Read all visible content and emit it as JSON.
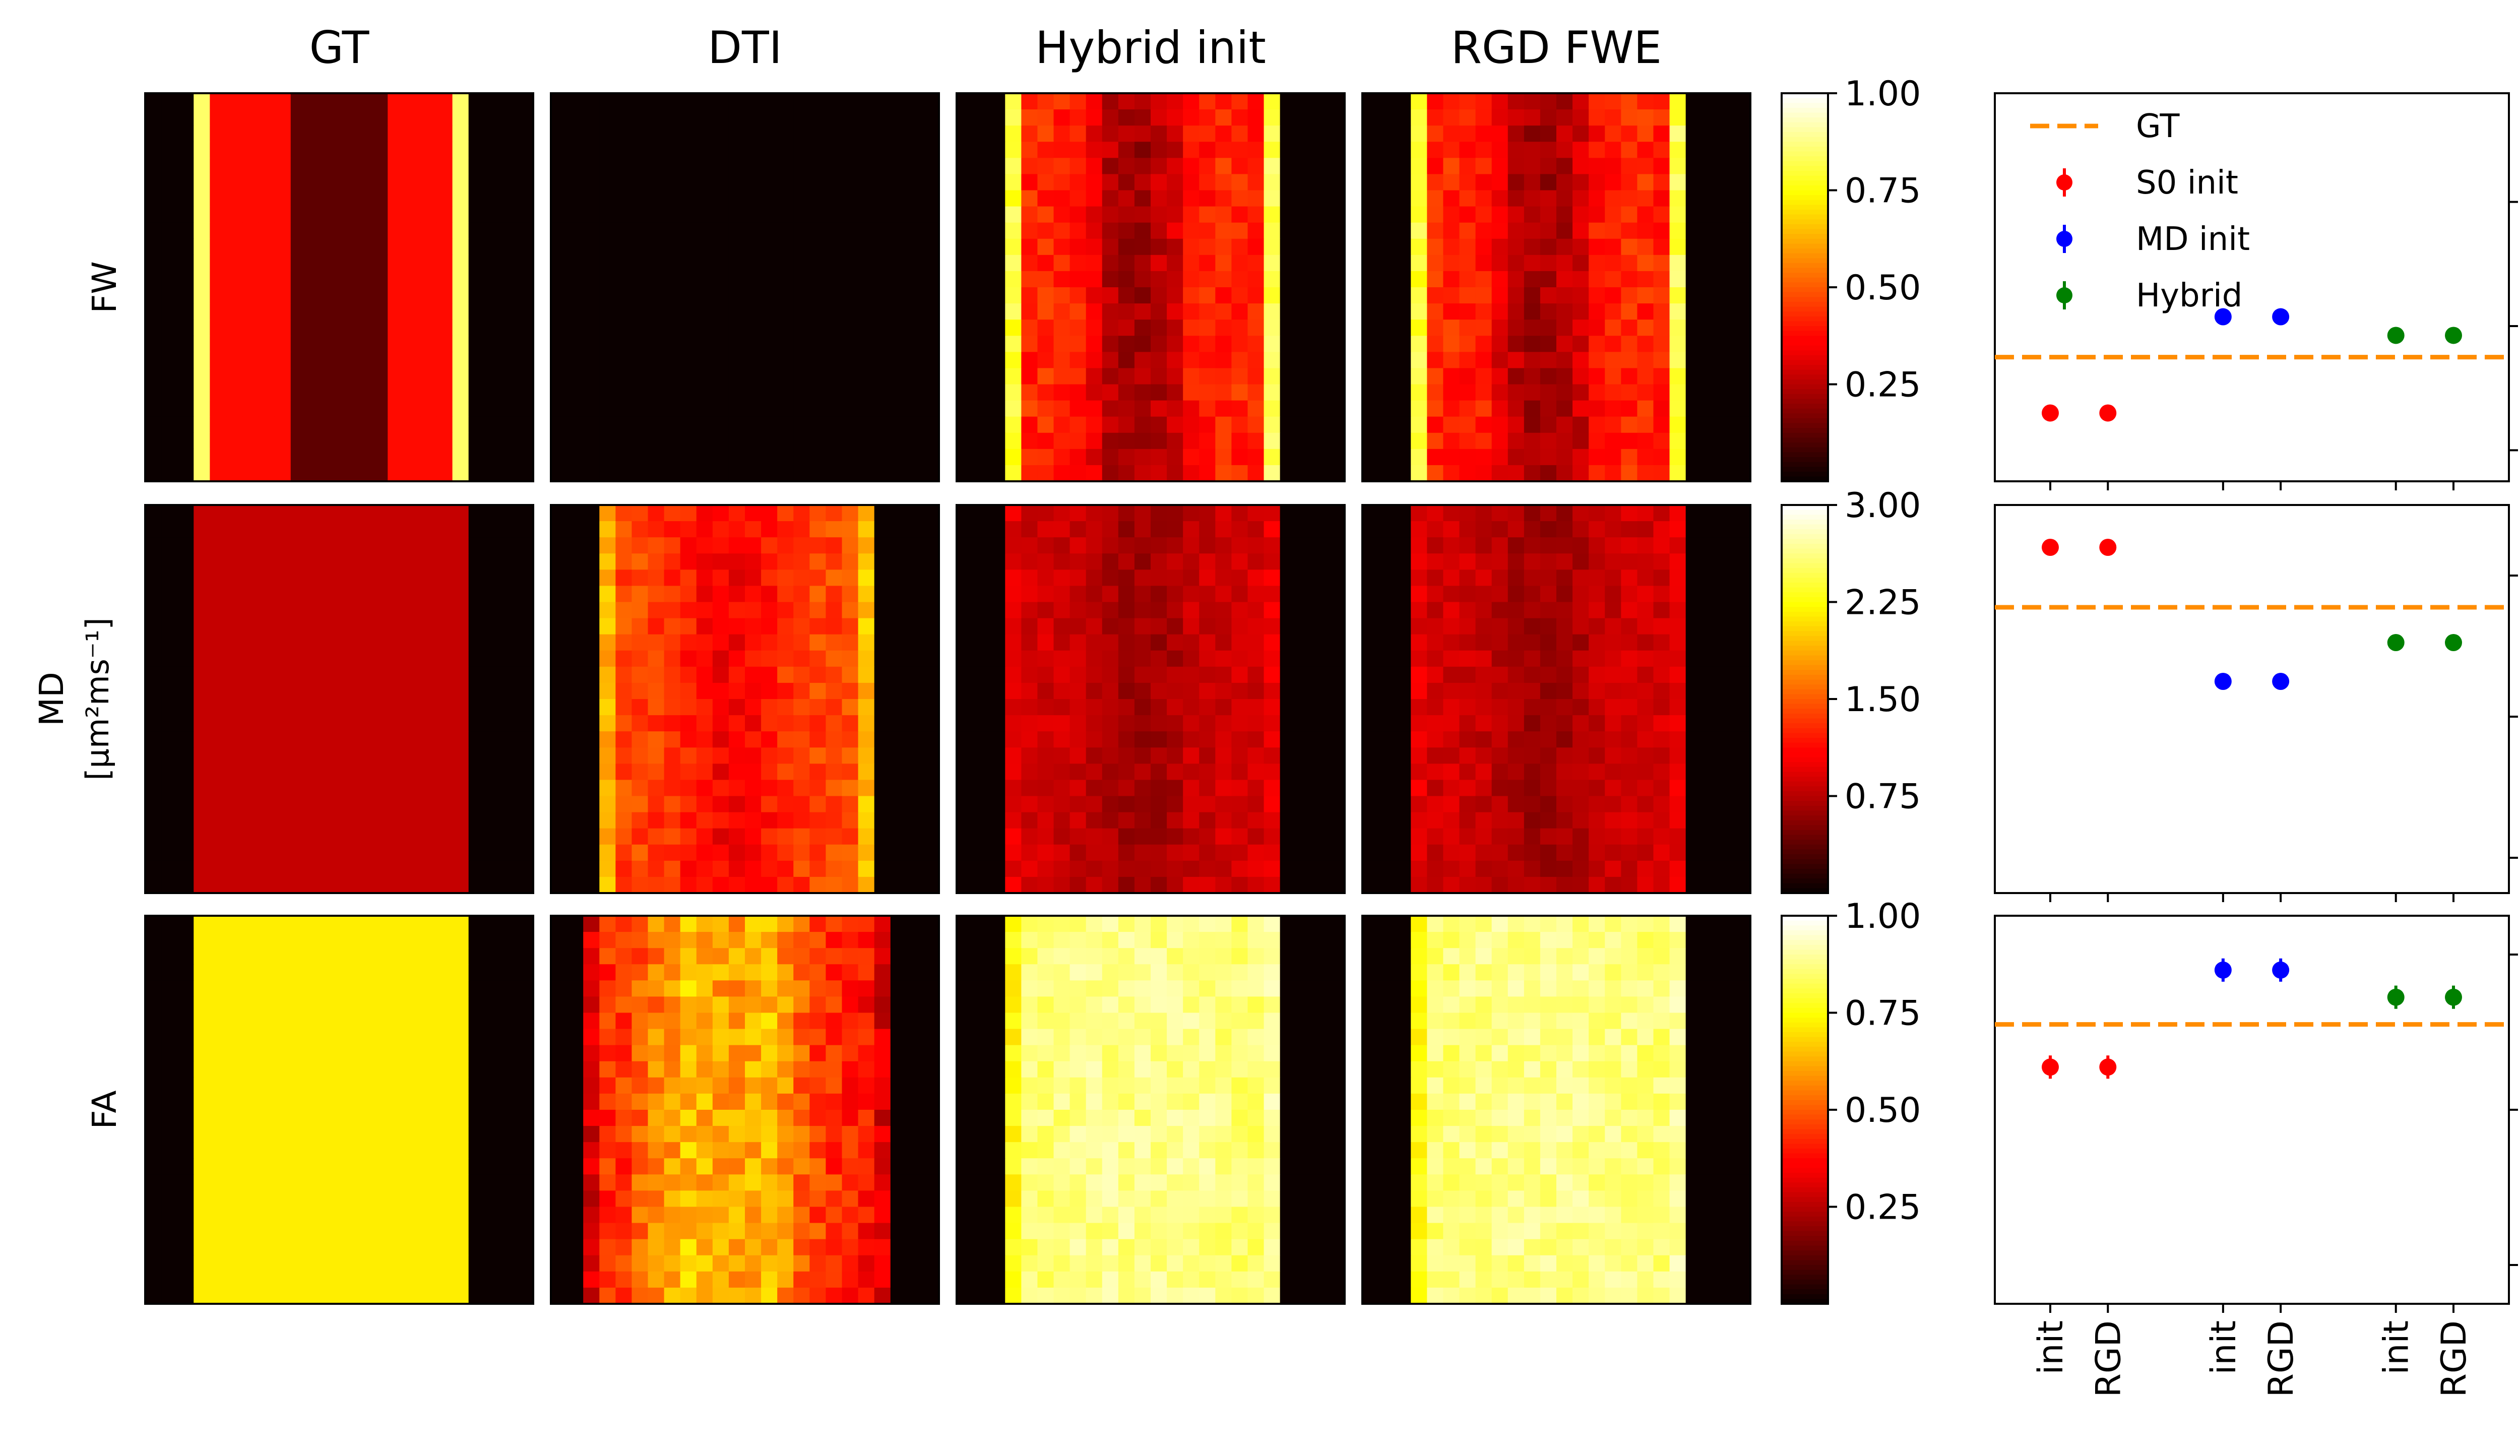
{
  "columns": [
    "GT",
    "DTI",
    "Hybrid init",
    "RGD FWE"
  ],
  "rows": [
    {
      "id": "fw",
      "label_lines": [
        "FW"
      ],
      "colorbar_ticks": [
        "1.00",
        "0.75",
        "0.50",
        "0.25"
      ],
      "vmin": 0,
      "vmax": 1
    },
    {
      "id": "md",
      "label_lines": [
        "MD",
        "[μm²ms⁻¹]"
      ],
      "colorbar_ticks": [
        "3.00",
        "2.25",
        "1.50",
        "0.75"
      ],
      "vmin": 0,
      "vmax": 3
    },
    {
      "id": "fa",
      "label_lines": [
        "FA"
      ],
      "colorbar_ticks": [
        "1.00",
        "0.75",
        "0.50",
        "0.25"
      ],
      "vmin": 0,
      "vmax": 1
    }
  ],
  "colormap": "hot",
  "heatmap_profiles": {
    "description_cols": 24,
    "fw": {
      "GT": {
        "mean": [
          0,
          0,
          0,
          0.85,
          0.38,
          0.38,
          0.38,
          0.38,
          0.38,
          0.12,
          0.12,
          0.12,
          0.12,
          0.12,
          0.12,
          0.38,
          0.38,
          0.38,
          0.38,
          0.85,
          0,
          0,
          0,
          0
        ],
        "noise": 0
      },
      "DTI": {
        "mean": [
          0,
          0,
          0,
          0,
          0,
          0,
          0,
          0,
          0,
          0,
          0,
          0,
          0,
          0,
          0,
          0,
          0,
          0,
          0,
          0,
          0,
          0,
          0,
          0
        ],
        "noise": 0
      },
      "Hybrid init": {
        "mean": [
          0,
          0,
          0,
          0.8,
          0.42,
          0.42,
          0.4,
          0.4,
          0.32,
          0.25,
          0.22,
          0.22,
          0.25,
          0.28,
          0.38,
          0.4,
          0.42,
          0.42,
          0.4,
          0.82,
          0,
          0,
          0,
          0
        ],
        "noise": 0.06
      },
      "RGD FWE": {
        "mean": [
          0,
          0,
          0,
          0.8,
          0.42,
          0.42,
          0.4,
          0.4,
          0.32,
          0.25,
          0.22,
          0.22,
          0.25,
          0.28,
          0.38,
          0.4,
          0.42,
          0.42,
          0.4,
          0.82,
          0,
          0,
          0,
          0
        ],
        "noise": 0.06
      }
    },
    "md": {
      "GT": {
        "mean": [
          0,
          0,
          0,
          0.8,
          0.8,
          0.8,
          0.8,
          0.8,
          0.8,
          0.8,
          0.8,
          0.8,
          0.8,
          0.8,
          0.8,
          0.8,
          0.8,
          0.8,
          0.8,
          0.8,
          0,
          0,
          0,
          0
        ],
        "noise": 0
      },
      "DTI": {
        "mean": [
          0,
          0,
          0,
          1.9,
          1.4,
          1.4,
          1.35,
          1.3,
          1.2,
          1.1,
          1.05,
          1.05,
          1.1,
          1.15,
          1.3,
          1.35,
          1.4,
          1.4,
          1.45,
          1.95,
          0,
          0,
          0,
          0
        ],
        "noise": 0.06
      },
      "Hybrid init": {
        "mean": [
          0,
          0,
          0,
          0.95,
          0.85,
          0.85,
          0.83,
          0.8,
          0.72,
          0.68,
          0.65,
          0.65,
          0.66,
          0.7,
          0.8,
          0.82,
          0.84,
          0.85,
          0.86,
          0.95,
          0,
          0,
          0,
          0
        ],
        "noise": 0.04
      },
      "RGD FWE": {
        "mean": [
          0,
          0,
          0,
          0.95,
          0.85,
          0.85,
          0.83,
          0.8,
          0.72,
          0.68,
          0.65,
          0.65,
          0.66,
          0.7,
          0.8,
          0.82,
          0.84,
          0.85,
          0.86,
          0.95,
          0,
          0,
          0,
          0
        ],
        "noise": 0.04
      }
    },
    "fa": {
      "GT": {
        "mean": [
          0,
          0,
          0,
          0.72,
          0.72,
          0.72,
          0.72,
          0.72,
          0.72,
          0.72,
          0.72,
          0.72,
          0.72,
          0.72,
          0.72,
          0.72,
          0.72,
          0.72,
          0.72,
          0.72,
          0,
          0,
          0,
          0
        ],
        "noise": 0
      },
      "DTI": {
        "mean": [
          0,
          0,
          0.3,
          0.42,
          0.45,
          0.5,
          0.55,
          0.6,
          0.65,
          0.62,
          0.6,
          0.6,
          0.62,
          0.65,
          0.58,
          0.5,
          0.46,
          0.44,
          0.4,
          0.38,
          0.3,
          0,
          0,
          0
        ],
        "noise": 0.08
      },
      "Hybrid init": {
        "mean": [
          0,
          0,
          0,
          0.75,
          0.86,
          0.86,
          0.87,
          0.88,
          0.88,
          0.88,
          0.88,
          0.88,
          0.88,
          0.88,
          0.88,
          0.88,
          0.87,
          0.86,
          0.86,
          0.9,
          0,
          0,
          0,
          0
        ],
        "noise": 0.05
      },
      "RGD FWE": {
        "mean": [
          0,
          0,
          0,
          0.75,
          0.86,
          0.86,
          0.87,
          0.88,
          0.88,
          0.88,
          0.88,
          0.88,
          0.88,
          0.88,
          0.88,
          0.88,
          0.87,
          0.86,
          0.86,
          0.9,
          0,
          0,
          0,
          0
        ],
        "noise": 0.05
      }
    }
  },
  "chart_data": [
    {
      "type": "scatter",
      "panel": "fw",
      "yticks": [
        "0.9",
        "0.5",
        "0.1"
      ],
      "ylim": [
        0,
        1.25
      ],
      "gt": 0.4,
      "x_positions": [
        1,
        2,
        4,
        5,
        7,
        8
      ],
      "points": [
        {
          "series": "S0 init",
          "x": 1,
          "y": 0.22,
          "err": 0.005
        },
        {
          "series": "S0 init",
          "x": 2,
          "y": 0.22,
          "err": 0.005
        },
        {
          "series": "MD init",
          "x": 4,
          "y": 0.53,
          "err": 0.005
        },
        {
          "series": "MD init",
          "x": 5,
          "y": 0.53,
          "err": 0.005
        },
        {
          "series": "Hybrid",
          "x": 7,
          "y": 0.47,
          "err": 0.005
        },
        {
          "series": "Hybrid",
          "x": 8,
          "y": 0.47,
          "err": 0.005
        }
      ]
    },
    {
      "type": "scatter",
      "panel": "md",
      "yticks": [
        "0.9",
        "0.5",
        "0.1"
      ],
      "ylim": [
        0,
        1.1
      ],
      "gt": 0.81,
      "x_positions": [
        1,
        2,
        4,
        5,
        7,
        8
      ],
      "points": [
        {
          "series": "S0 init",
          "x": 1,
          "y": 0.98,
          "err": 0.005
        },
        {
          "series": "S0 init",
          "x": 2,
          "y": 0.98,
          "err": 0.005
        },
        {
          "series": "MD init",
          "x": 4,
          "y": 0.6,
          "err": 0.005
        },
        {
          "series": "MD init",
          "x": 5,
          "y": 0.6,
          "err": 0.005
        },
        {
          "series": "Hybrid",
          "x": 7,
          "y": 0.71,
          "err": 0.005
        },
        {
          "series": "Hybrid",
          "x": 8,
          "y": 0.71,
          "err": 0.005
        }
      ]
    },
    {
      "type": "scatter",
      "panel": "fa",
      "yticks": [
        "0.9",
        "0.5",
        "0.1"
      ],
      "ylim": [
        0,
        1.0
      ],
      "gt": 0.72,
      "x_positions": [
        1,
        2,
        4,
        5,
        7,
        8
      ],
      "points": [
        {
          "series": "S0 init",
          "x": 1,
          "y": 0.61,
          "err": 0.03
        },
        {
          "series": "S0 init",
          "x": 2,
          "y": 0.61,
          "err": 0.03
        },
        {
          "series": "MD init",
          "x": 4,
          "y": 0.86,
          "err": 0.03
        },
        {
          "series": "MD init",
          "x": 5,
          "y": 0.86,
          "err": 0.03
        },
        {
          "series": "Hybrid",
          "x": 7,
          "y": 0.79,
          "err": 0.03
        },
        {
          "series": "Hybrid",
          "x": 8,
          "y": 0.79,
          "err": 0.03
        }
      ]
    }
  ],
  "xticklabels": [
    "init",
    "RGD",
    "init",
    "RGD",
    "init",
    "RGD"
  ],
  "legend": {
    "position": "top-left",
    "entries": [
      {
        "label": "GT",
        "kind": "dashed-line",
        "color": "#ff8c00"
      },
      {
        "label": "S0 init",
        "kind": "errorbar-point",
        "color": "#ff0000"
      },
      {
        "label": "MD init",
        "kind": "errorbar-point",
        "color": "#0000ff"
      },
      {
        "label": "Hybrid",
        "kind": "errorbar-point",
        "color": "#008000"
      }
    ]
  },
  "colors": {
    "S0 init": "#ff0000",
    "MD init": "#0000ff",
    "Hybrid": "#008000",
    "GT": "#ff8c00"
  }
}
